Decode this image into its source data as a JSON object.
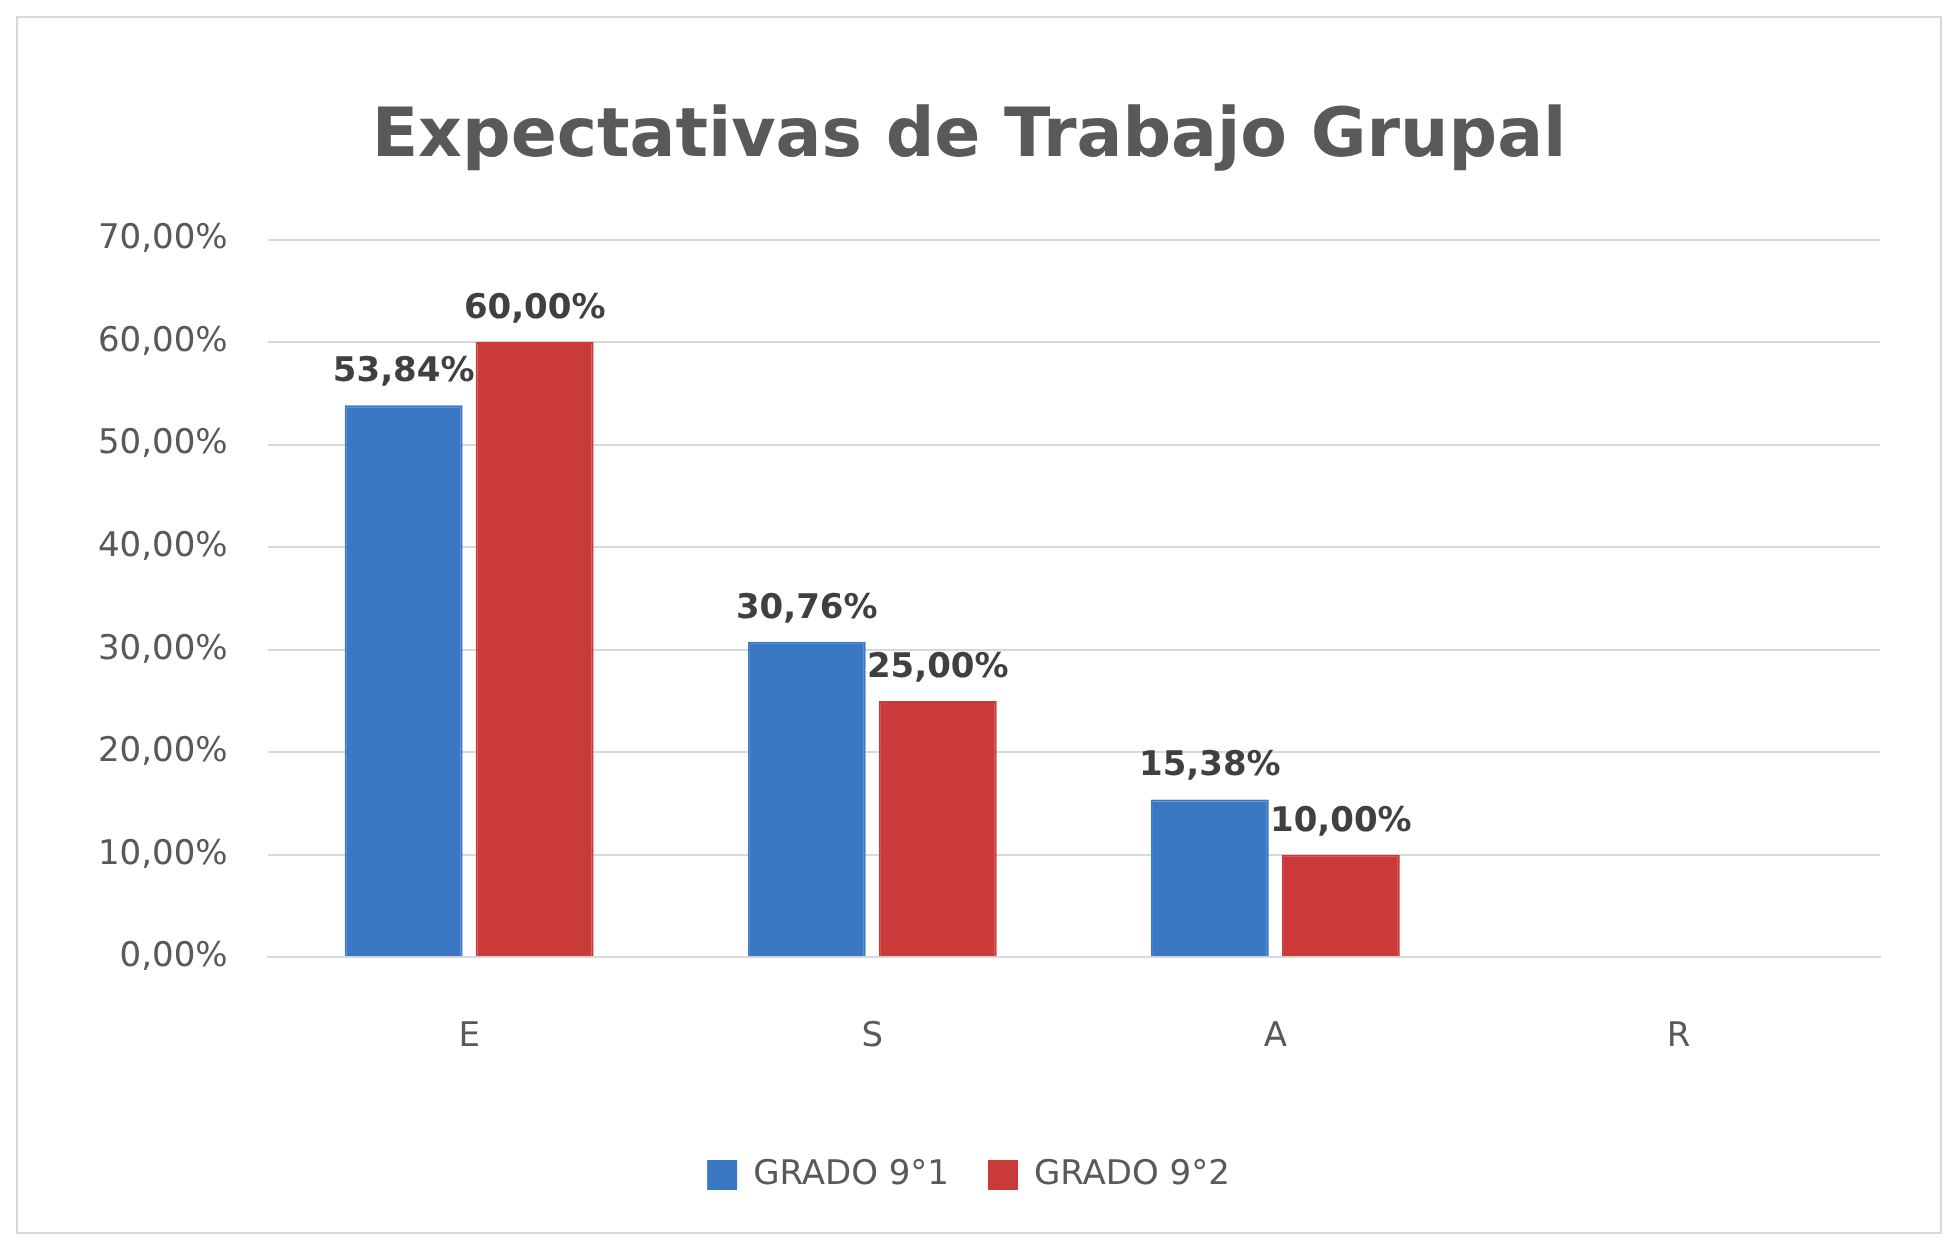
{
  "chart_data": {
    "type": "bar",
    "title": "Expectativas de Trabajo Grupal",
    "categories": [
      "E",
      "S",
      "A",
      "R"
    ],
    "series": [
      {
        "name": "GRADO 9°1",
        "color": "#3a78c4",
        "values": [
          53.84,
          30.76,
          15.38,
          0
        ],
        "value_labels": [
          "53,84%",
          "30,76%",
          "15,38%",
          null
        ]
      },
      {
        "name": "GRADO 9°2",
        "color": "#c93a38",
        "values": [
          60,
          25,
          10,
          0
        ],
        "value_labels": [
          "60,00%",
          "25,00%",
          "10,00%",
          null
        ]
      }
    ],
    "ylim": [
      0,
      70
    ],
    "yticks": [
      {
        "value": 0,
        "label": "0,00%"
      },
      {
        "value": 10,
        "label": "10,00%"
      },
      {
        "value": 20,
        "label": "20,00%"
      },
      {
        "value": 30,
        "label": "30,00%"
      },
      {
        "value": 40,
        "label": "40,00%"
      },
      {
        "value": 50,
        "label": "50,00%"
      },
      {
        "value": 60,
        "label": "60,00%"
      },
      {
        "value": 70,
        "label": "70,00%"
      }
    ],
    "grid": "y",
    "legend": "bottom"
  }
}
